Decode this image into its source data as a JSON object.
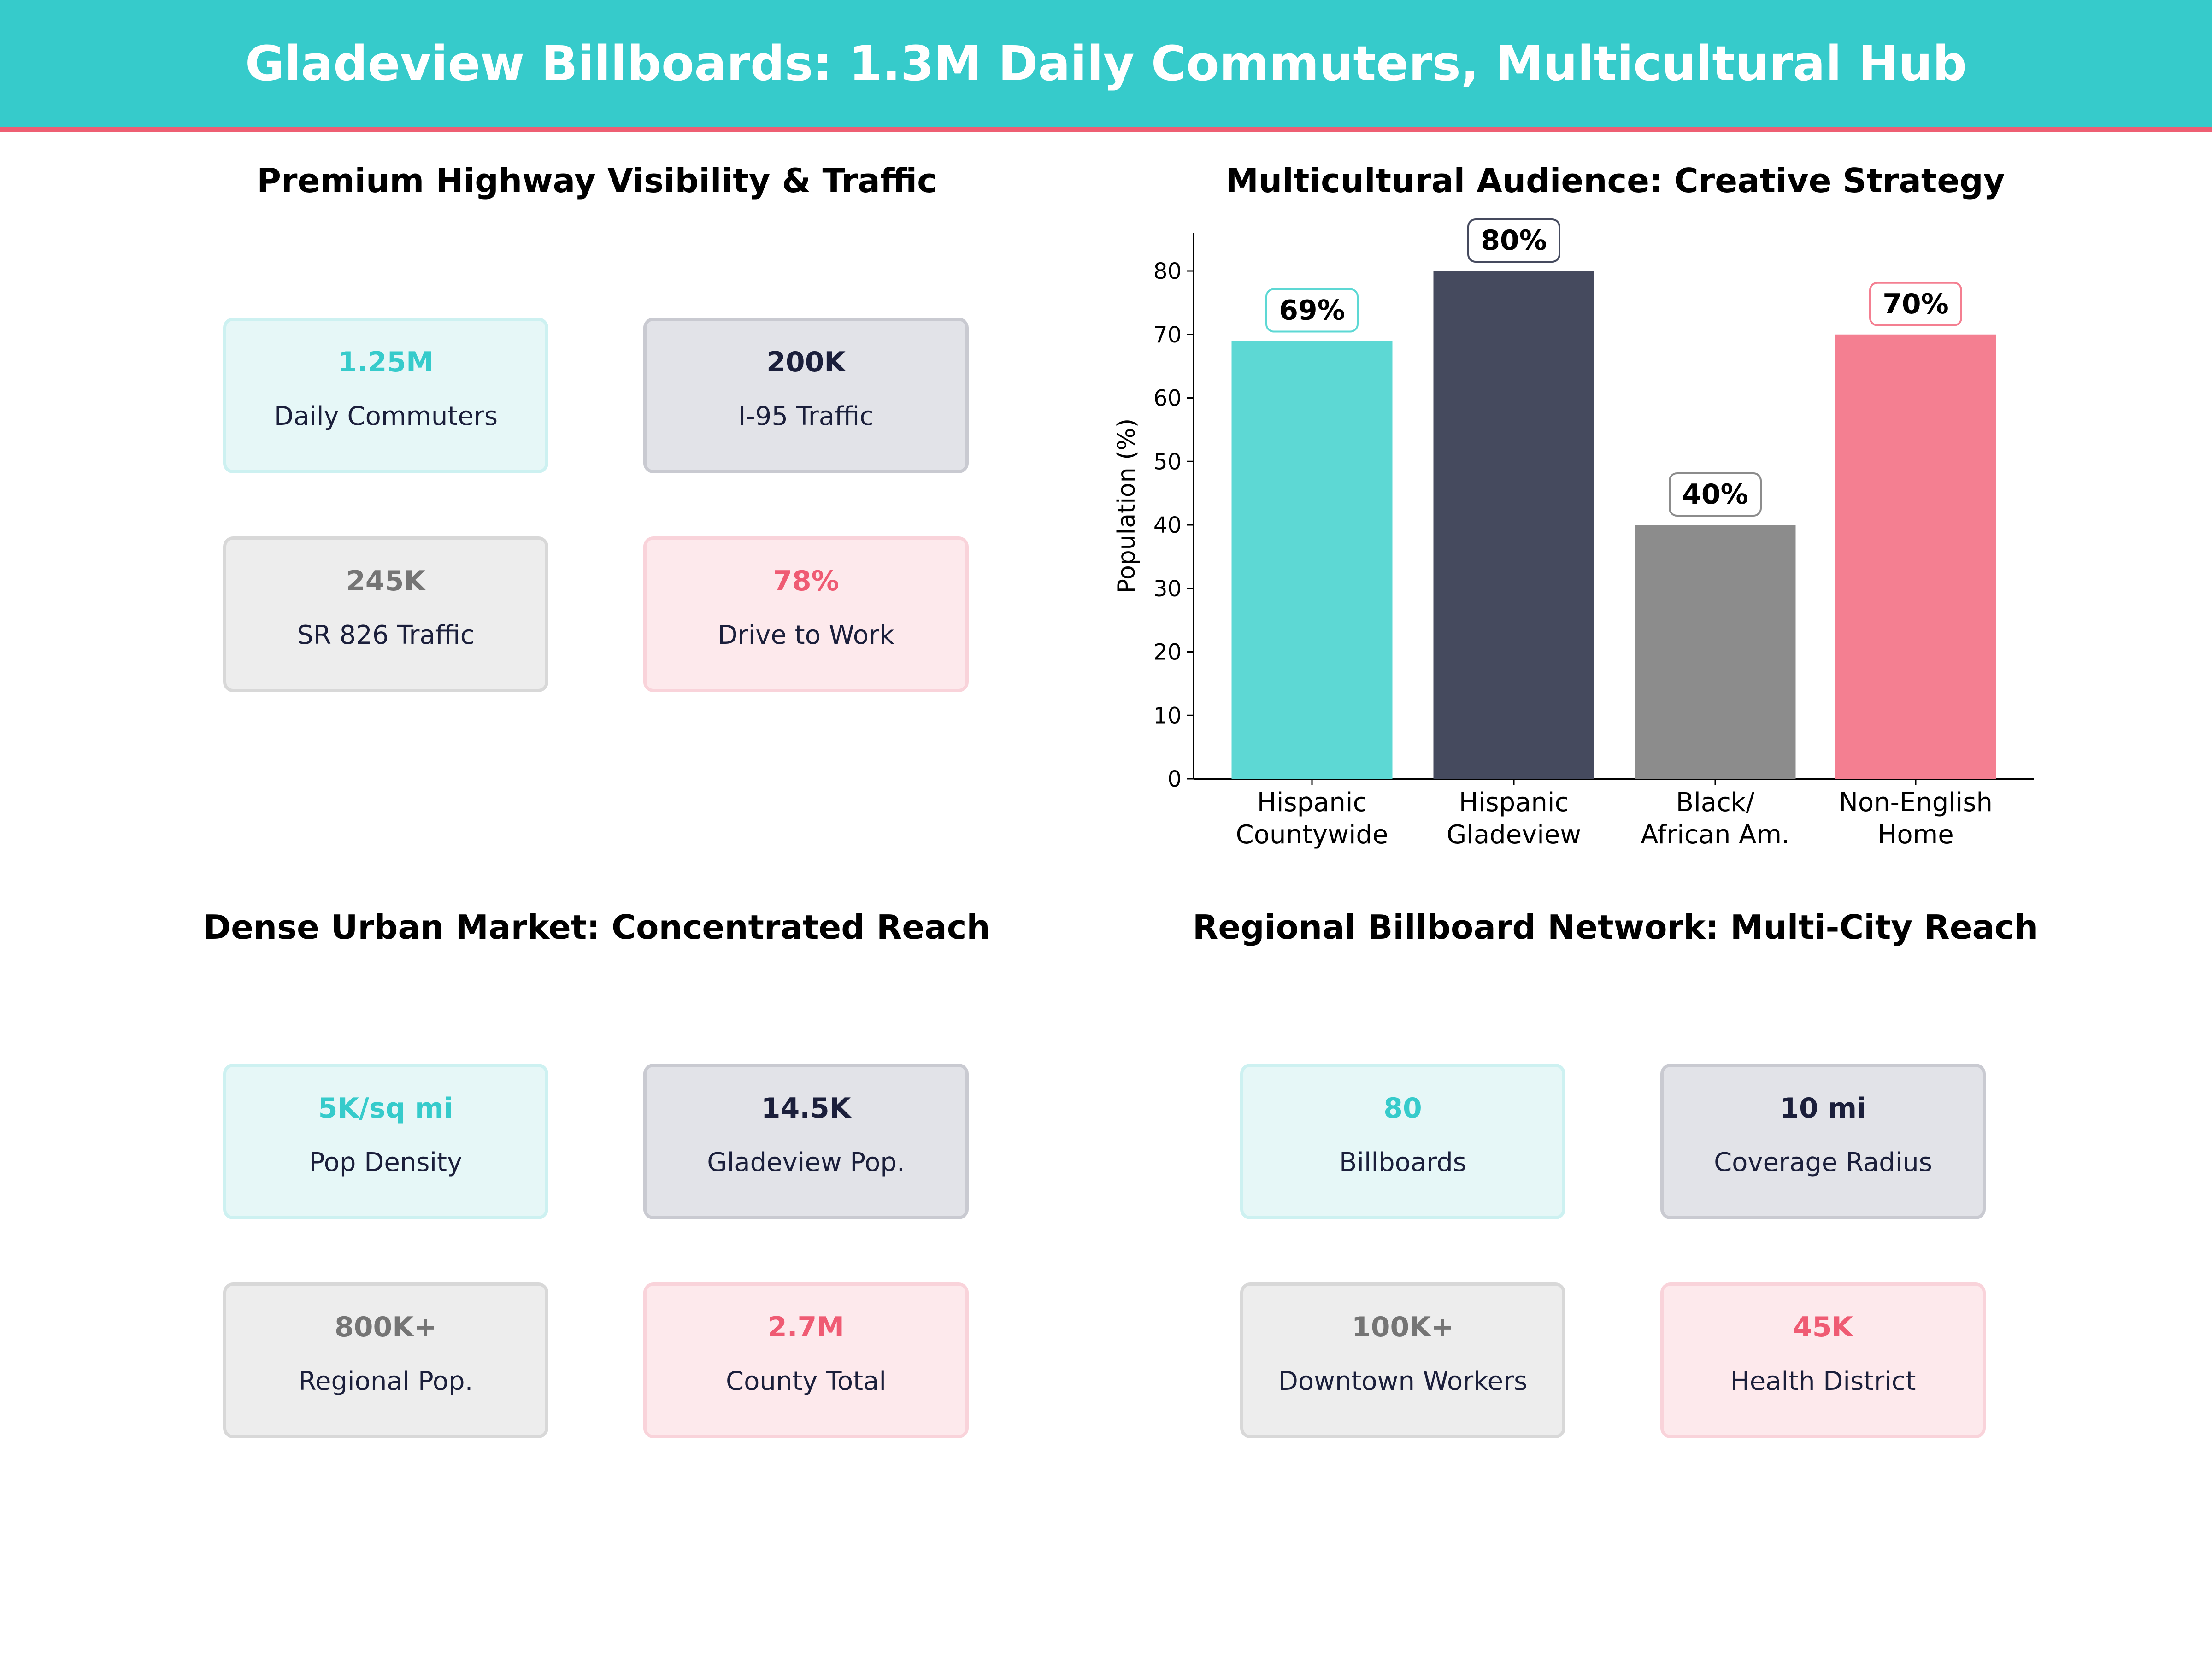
{
  "header": {
    "title": "Gladeview Billboards: 1.3M Daily Commuters, Multicultural Hub"
  },
  "panels": [
    {
      "title": "Premium Highway Visibility & Traffic",
      "cards": [
        {
          "value": "1.25M",
          "label": "Daily Commuters"
        },
        {
          "value": "200K",
          "label": "I-95  Traffic"
        },
        {
          "value": "245K",
          "label": "SR 826  Traffic"
        },
        {
          "value": "78%",
          "label": "Drive to Work"
        }
      ]
    },
    {
      "title": "Dense Urban Market: Concentrated Reach",
      "cards": [
        {
          "value": "5K/sq mi",
          "label": "Pop Density"
        },
        {
          "value": "14.5K",
          "label": "Gladeview Pop."
        },
        {
          "value": "800K+",
          "label": "Regional Pop."
        },
        {
          "value": "2.7M",
          "label": "County Total"
        }
      ]
    },
    {
      "title": "Regional Billboard Network: Multi-City Reach",
      "cards": [
        {
          "value": "80",
          "label": "Billboards"
        },
        {
          "value": "10 mi",
          "label": "Coverage Radius"
        },
        {
          "value": "100K+",
          "label": "Downtown Workers"
        },
        {
          "value": "45K",
          "label": "Health District"
        }
      ]
    }
  ],
  "chart_data": {
    "type": "bar",
    "title": "Multicultural Audience: Creative Strategy",
    "categories": [
      "Hispanic\nCountywide",
      "Hispanic\nGladeview",
      "Black/\nAfrican Am.",
      "Non-English\nHome"
    ],
    "values": [
      69,
      80,
      40,
      70
    ],
    "data_labels": [
      "69%",
      "80%",
      "40%",
      "70%"
    ],
    "colors": [
      "#5dd8d4",
      "#454a5e",
      "#8c8c8c",
      "#f47f91"
    ],
    "label_border_colors": [
      "#5dd8d4",
      "#454a5e",
      "#8c8c8c",
      "#f47f91"
    ],
    "xlabel": "",
    "ylabel": "Population (%)",
    "ylim": [
      0,
      86
    ],
    "yticks": [
      0,
      10,
      20,
      30,
      40,
      50,
      60,
      70,
      80
    ],
    "grid": false
  }
}
